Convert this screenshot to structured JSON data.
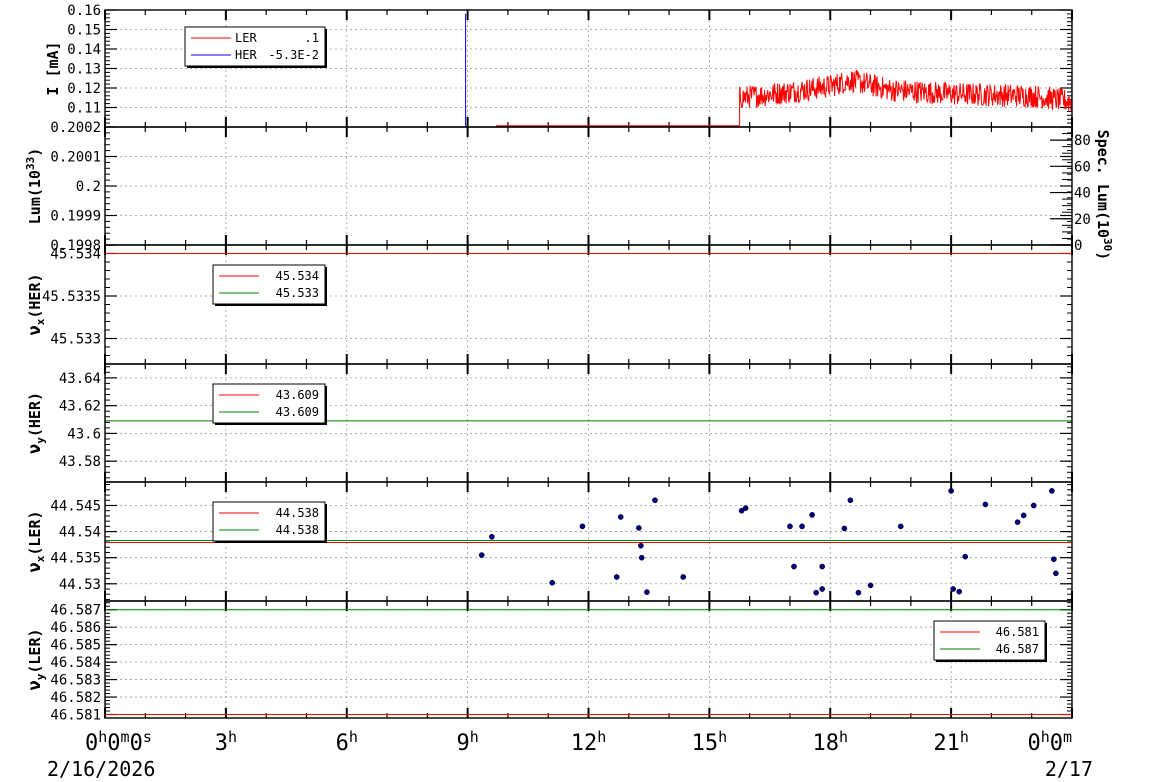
{
  "chart_data": {
    "type": "line",
    "x_range_hours": [
      0,
      24
    ],
    "x_ticks": [
      {
        "hour": 0,
        "label": "0",
        "unit": "h",
        "suffix": "0",
        "suffix_unit": "m",
        "tail": "0",
        "tail_unit": "s"
      },
      {
        "hour": 3,
        "label": "3",
        "unit": "h"
      },
      {
        "hour": 6,
        "label": "6",
        "unit": "h"
      },
      {
        "hour": 9,
        "label": "9",
        "unit": "h"
      },
      {
        "hour": 12,
        "label": "12",
        "unit": "h"
      },
      {
        "hour": 15,
        "label": "15",
        "unit": "h"
      },
      {
        "hour": 18,
        "label": "18",
        "unit": "h"
      },
      {
        "hour": 21,
        "label": "21",
        "unit": "h"
      },
      {
        "hour": 24,
        "label": "0",
        "unit": "h",
        "suffix": "0",
        "suffix_unit": "m"
      }
    ],
    "date_start": "2/16/2026",
    "date_end": "2/17",
    "grid": true,
    "colors": {
      "LER": "#ff0000",
      "HER": "#0000ff",
      "red": "#ff0000",
      "green": "#008000",
      "points": "#000080"
    },
    "panels": [
      {
        "id": "current",
        "ylabel": "I [mA]",
        "ylim": [
          0.1,
          0.16
        ],
        "yticks": [
          "0.11",
          "0.12",
          "0.13",
          "0.14",
          "0.15",
          "0.16"
        ],
        "ytick_values": [
          0.11,
          0.12,
          0.13,
          0.14,
          0.15,
          0.16
        ],
        "legend": [
          {
            "name": "LER",
            "value": ".1",
            "color": "#ff0000"
          },
          {
            "name": "HER",
            "value": "-5.3E-2",
            "color": "#0000ff"
          }
        ],
        "series": [
          {
            "name": "HER",
            "spike_hour": 8.95,
            "spike_peak": 0.158,
            "color": "#0000ff"
          },
          {
            "name": "LER",
            "noisy_start_hour": 15.75,
            "noisy_end_hour": 24,
            "baseline_from_hour": 9.7,
            "baseline_value": 0.1,
            "mean_profile": [
              [
                15.75,
                0.115
              ],
              [
                17,
                0.118
              ],
              [
                18,
                0.121
              ],
              [
                18.5,
                0.124
              ],
              [
                19.5,
                0.119
              ],
              [
                21,
                0.117
              ],
              [
                23,
                0.116
              ],
              [
                24,
                0.113
              ]
            ],
            "noise_amplitude": 0.006,
            "color": "#ff0000"
          }
        ]
      },
      {
        "id": "lum",
        "ylabel": "Lum(10^33)",
        "ylabel_base": "Lum(10",
        "ylabel_exp": "33",
        "ylabel_close": ")",
        "ylim": [
          0.1998,
          0.2002
        ],
        "yticks": [
          "0.1998",
          "0.1999",
          "0.2",
          "0.2001",
          "0.2002"
        ],
        "ytick_values": [
          0.1998,
          0.1999,
          0.2,
          0.2001,
          0.2002
        ],
        "y2label_base": "Spec. Lum(10",
        "y2label_exp": "30",
        "y2label_close": ")",
        "y2lim": [
          0,
          90
        ],
        "y2ticks": [
          "0",
          "20",
          "40",
          "60",
          "80"
        ],
        "y2tick_values": [
          0,
          20,
          40,
          60,
          80
        ]
      },
      {
        "id": "nux_her",
        "ylabel_base": "ν",
        "ylabel_sub": "x",
        "ylabel_rest": "(HER)",
        "ylim": [
          45.5327,
          45.5341
        ],
        "yticks": [
          "45.533",
          "45.5335",
          "45.534"
        ],
        "ytick_values": [
          45.533,
          45.5335,
          45.534
        ],
        "legend": [
          {
            "value": "45.534",
            "color": "#ff0000"
          },
          {
            "value": "45.533",
            "color": "#008000"
          }
        ],
        "lines": [
          {
            "y": 45.534,
            "color": "#ff0000"
          },
          {
            "y": 45.5327,
            "color": "#008000"
          }
        ]
      },
      {
        "id": "nuy_her",
        "ylabel_base": "ν",
        "ylabel_sub": "y",
        "ylabel_rest": "(HER)",
        "ylim": [
          43.565,
          43.65
        ],
        "yticks": [
          "43.58",
          "43.6",
          "43.62",
          "43.64"
        ],
        "ytick_values": [
          43.58,
          43.6,
          43.62,
          43.64
        ],
        "legend": [
          {
            "value": "43.609",
            "color": "#ff0000"
          },
          {
            "value": "43.609",
            "color": "#008000"
          }
        ],
        "lines": [
          {
            "y": 43.609,
            "color": "#008000"
          }
        ]
      },
      {
        "id": "nux_ler",
        "ylabel_base": "ν",
        "ylabel_sub": "x",
        "ylabel_rest": "(LER)",
        "ylim": [
          44.5267,
          44.5495
        ],
        "yticks": [
          "44.53",
          "44.535",
          "44.54",
          "44.545"
        ],
        "ytick_values": [
          44.53,
          44.535,
          44.54,
          44.545
        ],
        "legend": [
          {
            "value": "44.538",
            "color": "#ff0000"
          },
          {
            "value": "44.538",
            "color": "#008000"
          }
        ],
        "lines": [
          {
            "y": 44.5383,
            "color": "#008000"
          },
          {
            "y": 44.5379,
            "color": "#ff0000"
          }
        ],
        "points": [
          [
            9.35,
            44.5355
          ],
          [
            9.6,
            44.539
          ],
          [
            11.1,
            44.5302
          ],
          [
            11.85,
            44.541
          ],
          [
            12.7,
            44.5313
          ],
          [
            12.8,
            44.5428
          ],
          [
            13.25,
            44.5407
          ],
          [
            13.3,
            44.5373
          ],
          [
            13.32,
            44.535
          ],
          [
            13.45,
            44.5284
          ],
          [
            13.65,
            44.546
          ],
          [
            14.35,
            44.5313
          ],
          [
            15.8,
            44.544
          ],
          [
            15.9,
            44.5445
          ],
          [
            17.0,
            44.541
          ],
          [
            17.1,
            44.5333
          ],
          [
            17.3,
            44.541
          ],
          [
            17.55,
            44.5432
          ],
          [
            17.65,
            44.5283
          ],
          [
            17.8,
            44.529
          ],
          [
            17.8,
            44.5333
          ],
          [
            18.35,
            44.5406
          ],
          [
            18.5,
            44.546
          ],
          [
            18.7,
            44.5283
          ],
          [
            19.0,
            44.5297
          ],
          [
            19.75,
            44.541
          ],
          [
            21.0,
            44.5478
          ],
          [
            21.05,
            44.529
          ],
          [
            21.2,
            44.5285
          ],
          [
            21.35,
            44.5352
          ],
          [
            21.85,
            44.5452
          ],
          [
            22.65,
            44.5418
          ],
          [
            22.8,
            44.5431
          ],
          [
            23.05,
            44.545
          ],
          [
            23.5,
            44.5478
          ],
          [
            23.55,
            44.5347
          ],
          [
            23.6,
            44.532
          ]
        ]
      },
      {
        "id": "nuy_ler",
        "ylabel_base": "ν",
        "ylabel_sub": "y",
        "ylabel_rest": "(LER)",
        "ylim": [
          46.5808,
          46.5875
        ],
        "yticks": [
          "46.581",
          "46.582",
          "46.583",
          "46.584",
          "46.585",
          "46.586",
          "46.587"
        ],
        "ytick_values": [
          46.581,
          46.582,
          46.583,
          46.584,
          46.585,
          46.586,
          46.587
        ],
        "legend": [
          {
            "value": "46.581",
            "color": "#ff0000"
          },
          {
            "value": "46.587",
            "color": "#008000"
          }
        ],
        "legend_position": "right",
        "lines": [
          {
            "y": 46.587,
            "color": "#008000"
          },
          {
            "y": 46.581,
            "color": "#ff0000"
          }
        ]
      }
    ]
  }
}
